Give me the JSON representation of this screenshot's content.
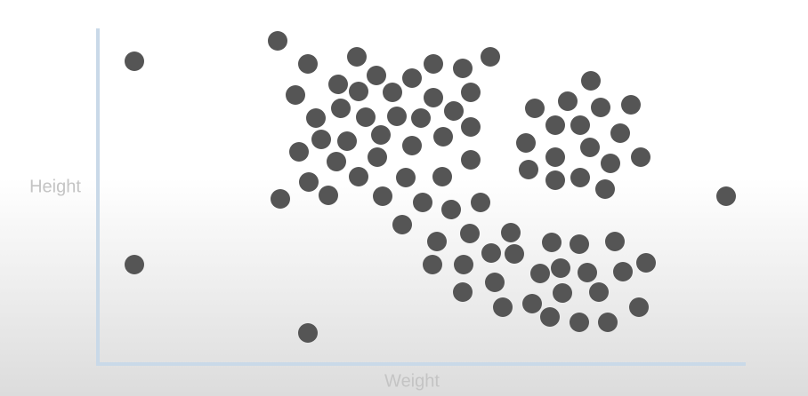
{
  "chart_data": {
    "type": "scatter",
    "x_label": "Weight",
    "y_label": "Height",
    "color": "#555555",
    "xlim": [
      0,
      728
    ],
    "ylim": [
      0,
      378
    ],
    "x": [
      41,
      41,
      236,
      706,
      202,
      236,
      291,
      441,
      377,
      410,
      313,
      353,
      270,
      293,
      331,
      222,
      377,
      419,
      273,
      245,
      301,
      336,
      363,
      400,
      419,
      251,
      280,
      318,
      353,
      388,
      226,
      268,
      314,
      419,
      237,
      293,
      346,
      387,
      205,
      259,
      320,
      365,
      397,
      430,
      342,
      554,
      491,
      528,
      565,
      599,
      514,
      542,
      481,
      587,
      553,
      514,
      610,
      484,
      576,
      514,
      542,
      570,
      381,
      418,
      464,
      510,
      541,
      581,
      376,
      411,
      442,
      468,
      497,
      520,
      550,
      590,
      616,
      446,
      410,
      522,
      563,
      455,
      488,
      508,
      541,
      573,
      608
    ],
    "values": [
      341,
      112,
      35,
      189,
      364,
      338,
      346,
      346,
      338,
      333,
      325,
      322,
      315,
      307,
      306,
      303,
      300,
      306,
      288,
      277,
      278,
      279,
      277,
      285,
      267,
      253,
      251,
      258,
      246,
      256,
      239,
      228,
      233,
      230,
      205,
      211,
      210,
      211,
      186,
      190,
      189,
      182,
      174,
      182,
      157,
      319,
      288,
      296,
      289,
      292,
      269,
      269,
      249,
      260,
      244,
      233,
      233,
      219,
      226,
      207,
      210,
      197,
      138,
      147,
      148,
      137,
      135,
      138,
      112,
      112,
      125,
      124,
      102,
      108,
      103,
      104,
      114,
      92,
      81,
      80,
      81,
      64,
      68,
      53,
      47,
      47,
      64
    ]
  }
}
